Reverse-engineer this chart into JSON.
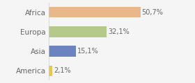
{
  "categories": [
    "Africa",
    "Europa",
    "Asia",
    "America"
  ],
  "values": [
    50.7,
    32.1,
    15.1,
    2.1
  ],
  "labels": [
    "50,7%",
    "32,1%",
    "15,1%",
    "2,1%"
  ],
  "bar_colors": [
    "#e8b88a",
    "#b5c98a",
    "#6b84c0",
    "#e8c84a"
  ],
  "background_color": "#f5f5f5",
  "xlim": [
    0,
    68
  ],
  "bar_height": 0.55,
  "label_fontsize": 7,
  "tick_fontsize": 7.5
}
